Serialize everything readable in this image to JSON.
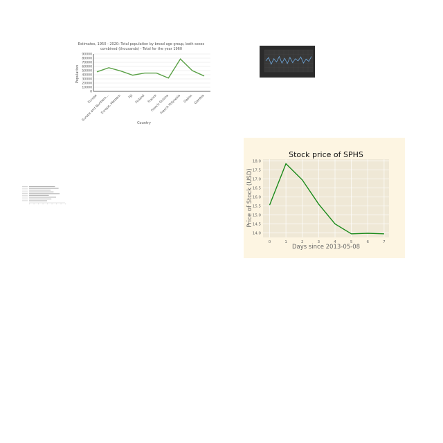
{
  "chart_data": [
    {
      "type": "line",
      "title": "Estimates, 1950 - 2020: Total population by broad age group, both sexes combined (thousands) - Total for the year 1960",
      "title_lines": [
        "Estimates, 1950 - 2020: Total population by broad age group, both sexes",
        "combined (thousands) - Total for the year 1960"
      ],
      "xlabel": "Country",
      "ylabel": "Population",
      "categories": [
        "Europe",
        "Europe and Northern...",
        "Europe, Western",
        "Fiji",
        "Finland",
        "France",
        "French Guiana",
        "French Polynesia",
        "Gabon",
        "Gambia"
      ],
      "values": [
        47000,
        57000,
        49000,
        39000,
        44000,
        44000,
        32000,
        78000,
        50000,
        37000
      ],
      "yticks": [
        0,
        10000,
        20000,
        30000,
        40000,
        50000,
        60000,
        70000,
        80000,
        90000
      ],
      "ylim": [
        0,
        90000
      ],
      "grid": true,
      "colors": {
        "line": "#5aa046",
        "grid": "#d9d9d9",
        "axis": "#333333",
        "text": "#555555"
      }
    },
    {
      "type": "line",
      "theme": "dark",
      "title": "",
      "xlabel": "",
      "ylabel": "",
      "values": [
        0.5,
        0.65,
        0.35,
        0.6,
        0.45,
        0.7,
        0.4,
        0.62,
        0.38,
        0.66,
        0.42,
        0.6,
        0.5,
        0.68,
        0.4,
        0.58,
        0.48,
        0.7
      ],
      "ylim": [
        0,
        1
      ],
      "grid": true,
      "colors": {
        "line": "#6fa8dc",
        "background": "#2b2b2b",
        "plot": "#383838",
        "grid": "#4a4a4a"
      }
    },
    {
      "type": "bar",
      "orientation": "horizontal",
      "title": "",
      "categories": [
        "",
        "",
        "",
        "",
        "",
        "",
        "",
        "",
        ""
      ],
      "values": [
        0.72,
        0.82,
        0.6,
        0.68,
        0.85,
        0.55,
        0.75,
        0.62,
        0.5
      ],
      "xlim": [
        0,
        1
      ],
      "colors": {
        "bar": "#b5b5b5",
        "axis": "#999999"
      }
    },
    {
      "type": "line",
      "title": "Stock price of SPHS",
      "xlabel": "Days since 2013-05-08",
      "ylabel": "Price of Stock (USD)",
      "x": [
        0,
        1,
        2,
        3,
        4,
        5,
        6,
        7
      ],
      "y": [
        15.55,
        17.85,
        16.95,
        15.6,
        14.5,
        13.95,
        13.98,
        13.95
      ],
      "xticks": [
        0,
        1,
        2,
        3,
        4,
        5,
        6,
        7
      ],
      "yticks": [
        14.0,
        14.5,
        15.0,
        15.5,
        16.0,
        16.5,
        17.0,
        17.5,
        18.0
      ],
      "ytick_labels": [
        "14.0",
        "14.5",
        "15.0",
        "15.5",
        "16.0",
        "16.5",
        "17.0",
        "17.5",
        "18.0"
      ],
      "xlim": [
        -0.4,
        7.3
      ],
      "ylim": [
        13.75,
        18.1
      ],
      "grid": true,
      "colors": {
        "line": "#1a8a1a",
        "background": "#fdf5e2",
        "plot": "#efe8d6",
        "grid": "#ffffff",
        "text": "#666666",
        "title": "#111111"
      }
    }
  ]
}
